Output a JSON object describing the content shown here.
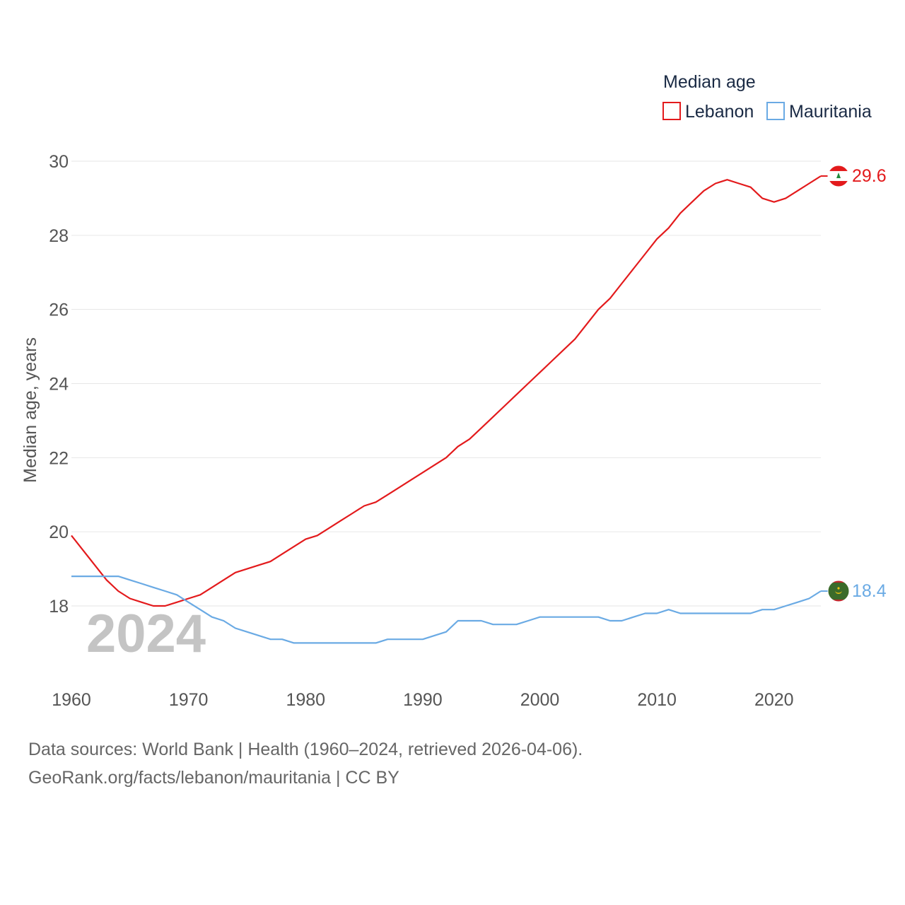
{
  "legend": {
    "title": "Median age",
    "items": [
      "Lebanon",
      "Mauritania"
    ]
  },
  "year_watermark": "2024",
  "footer": {
    "line1": "Data sources: World Bank | Health (1960–2024, retrieved 2026-04-06).",
    "line2": "GeoRank.org/facts/lebanon/mauritania | CC BY"
  },
  "chart_data": {
    "type": "line",
    "title": "Median age",
    "xlabel": "",
    "ylabel": "Median age, years",
    "xlim": [
      1960,
      2024
    ],
    "ylim": [
      16.5,
      30
    ],
    "xticks": [
      1960,
      1970,
      1980,
      1990,
      2000,
      2010,
      2020
    ],
    "xtick_labels": [
      "1960",
      "1970",
      "1980",
      "1990",
      "2000",
      "2010",
      "2020"
    ],
    "yticks": [
      18,
      20,
      22,
      24,
      26,
      28,
      30
    ],
    "ytick_labels": [
      "18",
      "20",
      "22",
      "24",
      "26",
      "28",
      "30"
    ],
    "grid": true,
    "legend_position": "top-right",
    "x": [
      1960,
      1961,
      1962,
      1963,
      1964,
      1965,
      1966,
      1967,
      1968,
      1969,
      1970,
      1971,
      1972,
      1973,
      1974,
      1975,
      1976,
      1977,
      1978,
      1979,
      1980,
      1981,
      1982,
      1983,
      1984,
      1985,
      1986,
      1987,
      1988,
      1989,
      1990,
      1991,
      1992,
      1993,
      1994,
      1995,
      1996,
      1997,
      1998,
      1999,
      2000,
      2001,
      2002,
      2003,
      2004,
      2005,
      2006,
      2007,
      2008,
      2009,
      2010,
      2011,
      2012,
      2013,
      2014,
      2015,
      2016,
      2017,
      2018,
      2019,
      2020,
      2021,
      2022,
      2023,
      2024
    ],
    "series": [
      {
        "name": "Lebanon",
        "color": "#e31a1c",
        "end_label": "29.6",
        "flag": "lebanon-flag",
        "values": [
          19.9,
          19.5,
          19.1,
          18.7,
          18.4,
          18.2,
          18.1,
          18.0,
          18.0,
          18.1,
          18.2,
          18.3,
          18.5,
          18.7,
          18.9,
          19.0,
          19.1,
          19.2,
          19.4,
          19.6,
          19.8,
          19.9,
          20.1,
          20.3,
          20.5,
          20.7,
          20.8,
          21.0,
          21.2,
          21.4,
          21.6,
          21.8,
          22.0,
          22.3,
          22.5,
          22.8,
          23.1,
          23.4,
          23.7,
          24.0,
          24.3,
          24.6,
          24.9,
          25.2,
          25.6,
          26.0,
          26.3,
          26.7,
          27.1,
          27.5,
          27.9,
          28.2,
          28.6,
          28.9,
          29.2,
          29.4,
          29.5,
          29.4,
          29.3,
          29.0,
          28.9,
          29.0,
          29.2,
          29.4,
          29.6
        ]
      },
      {
        "name": "Mauritania",
        "color": "#6aaae4",
        "end_label": "18.4",
        "flag": "mauritania-flag",
        "values": [
          18.8,
          18.8,
          18.8,
          18.8,
          18.8,
          18.7,
          18.6,
          18.5,
          18.4,
          18.3,
          18.1,
          17.9,
          17.7,
          17.6,
          17.4,
          17.3,
          17.2,
          17.1,
          17.1,
          17.0,
          17.0,
          17.0,
          17.0,
          17.0,
          17.0,
          17.0,
          17.0,
          17.1,
          17.1,
          17.1,
          17.1,
          17.2,
          17.3,
          17.6,
          17.6,
          17.6,
          17.5,
          17.5,
          17.5,
          17.6,
          17.7,
          17.7,
          17.7,
          17.7,
          17.7,
          17.7,
          17.6,
          17.6,
          17.7,
          17.8,
          17.8,
          17.9,
          17.8,
          17.8,
          17.8,
          17.8,
          17.8,
          17.8,
          17.8,
          17.9,
          17.9,
          18.0,
          18.1,
          18.2,
          18.4
        ]
      }
    ]
  }
}
